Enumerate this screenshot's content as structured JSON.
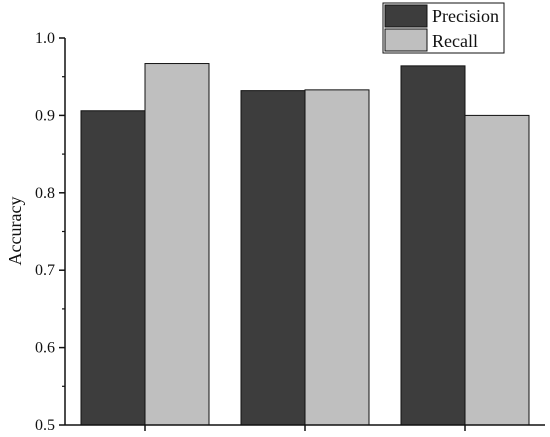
{
  "chart_data": {
    "type": "bar",
    "title": "",
    "xlabel": "",
    "ylabel": "Accuracy",
    "ylim": [
      0.5,
      1.0
    ],
    "yticks": [
      "0.5",
      "0.6",
      "0.7",
      "0.8",
      "0.9",
      "1.0"
    ],
    "categories": [
      "",
      "",
      ""
    ],
    "grid": false,
    "legend_position": "top-right",
    "series": [
      {
        "name": "Precision",
        "color": "#3d3d3d",
        "values": [
          0.906,
          0.932,
          0.964
        ]
      },
      {
        "name": "Recall",
        "color": "#bfbfbf",
        "values": [
          0.967,
          0.933,
          0.9
        ]
      }
    ]
  }
}
